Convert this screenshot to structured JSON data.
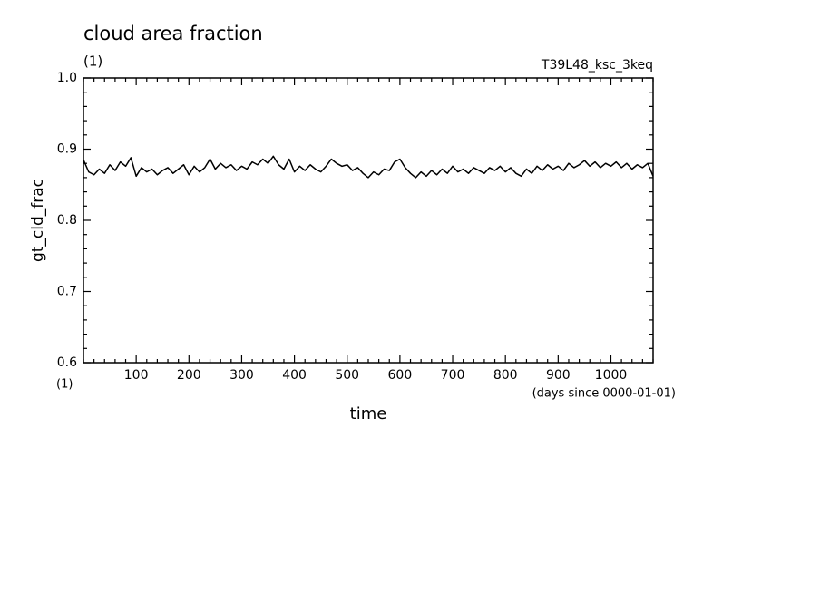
{
  "chart_data": {
    "type": "line",
    "title": "cloud area fraction",
    "subtitle": "(1)",
    "run_label": "T39L48_ksc_3keq",
    "ylabel": "gt_cld_frac",
    "y_units": "(1)",
    "xlabel": "time",
    "x_units": "(days since 0000-01-01)",
    "xlim": [
      0,
      1080
    ],
    "ylim": [
      0.6,
      1.0
    ],
    "xticks": [
      100,
      200,
      300,
      400,
      500,
      600,
      700,
      800,
      900,
      1000
    ],
    "yticks": [
      0.6,
      0.7,
      0.8,
      0.9,
      {
        "value": 1.0,
        "label": "1.0"
      }
    ],
    "xminor_ticks": [
      0,
      20,
      40,
      60,
      80,
      120,
      140,
      160,
      180,
      220,
      240,
      260,
      280,
      320,
      340,
      360,
      380,
      420,
      440,
      460,
      480,
      520,
      540,
      560,
      580,
      620,
      640,
      660,
      680,
      720,
      740,
      760,
      780,
      820,
      840,
      860,
      880,
      920,
      940,
      960,
      980,
      1020,
      1040,
      1060,
      1080
    ],
    "yminor_ticks": [
      0.62,
      0.64,
      0.66,
      0.68,
      0.72,
      0.74,
      0.76,
      0.78,
      0.82,
      0.84,
      0.86,
      0.88,
      0.92,
      0.94,
      0.96,
      0.98
    ],
    "x": [
      0,
      10,
      20,
      30,
      40,
      50,
      60,
      70,
      80,
      90,
      100,
      110,
      120,
      130,
      140,
      150,
      160,
      170,
      180,
      190,
      200,
      210,
      220,
      230,
      240,
      250,
      260,
      270,
      280,
      290,
      300,
      310,
      320,
      330,
      340,
      350,
      360,
      370,
      380,
      390,
      400,
      410,
      420,
      430,
      440,
      450,
      460,
      470,
      480,
      490,
      500,
      510,
      520,
      530,
      540,
      550,
      560,
      570,
      580,
      590,
      600,
      610,
      620,
      630,
      640,
      650,
      660,
      670,
      680,
      690,
      700,
      710,
      720,
      730,
      740,
      750,
      760,
      770,
      780,
      790,
      800,
      810,
      820,
      830,
      840,
      850,
      860,
      870,
      880,
      890,
      900,
      910,
      920,
      930,
      940,
      950,
      960,
      970,
      980,
      990,
      1000,
      1010,
      1020,
      1030,
      1040,
      1050,
      1060,
      1070,
      1080
    ],
    "series": [
      {
        "name": "gt_cld_frac",
        "color": "#000000",
        "values": [
          0.885,
          0.868,
          0.864,
          0.872,
          0.866,
          0.878,
          0.87,
          0.882,
          0.876,
          0.888,
          0.862,
          0.874,
          0.868,
          0.872,
          0.864,
          0.87,
          0.874,
          0.866,
          0.872,
          0.878,
          0.864,
          0.876,
          0.868,
          0.874,
          0.886,
          0.872,
          0.88,
          0.874,
          0.878,
          0.87,
          0.876,
          0.872,
          0.882,
          0.878,
          0.886,
          0.88,
          0.89,
          0.878,
          0.872,
          0.886,
          0.868,
          0.876,
          0.87,
          0.878,
          0.872,
          0.868,
          0.876,
          0.886,
          0.88,
          0.876,
          0.878,
          0.87,
          0.874,
          0.866,
          0.86,
          0.868,
          0.864,
          0.872,
          0.87,
          0.882,
          0.886,
          0.874,
          0.866,
          0.86,
          0.868,
          0.862,
          0.87,
          0.864,
          0.872,
          0.866,
          0.876,
          0.868,
          0.872,
          0.866,
          0.874,
          0.87,
          0.866,
          0.874,
          0.87,
          0.876,
          0.868,
          0.874,
          0.866,
          0.862,
          0.872,
          0.866,
          0.876,
          0.87,
          0.878,
          0.872,
          0.876,
          0.87,
          0.88,
          0.874,
          0.878,
          0.884,
          0.876,
          0.882,
          0.874,
          0.88,
          0.876,
          0.882,
          0.874,
          0.88,
          0.872,
          0.878,
          0.874,
          0.88,
          0.862
        ]
      }
    ]
  }
}
